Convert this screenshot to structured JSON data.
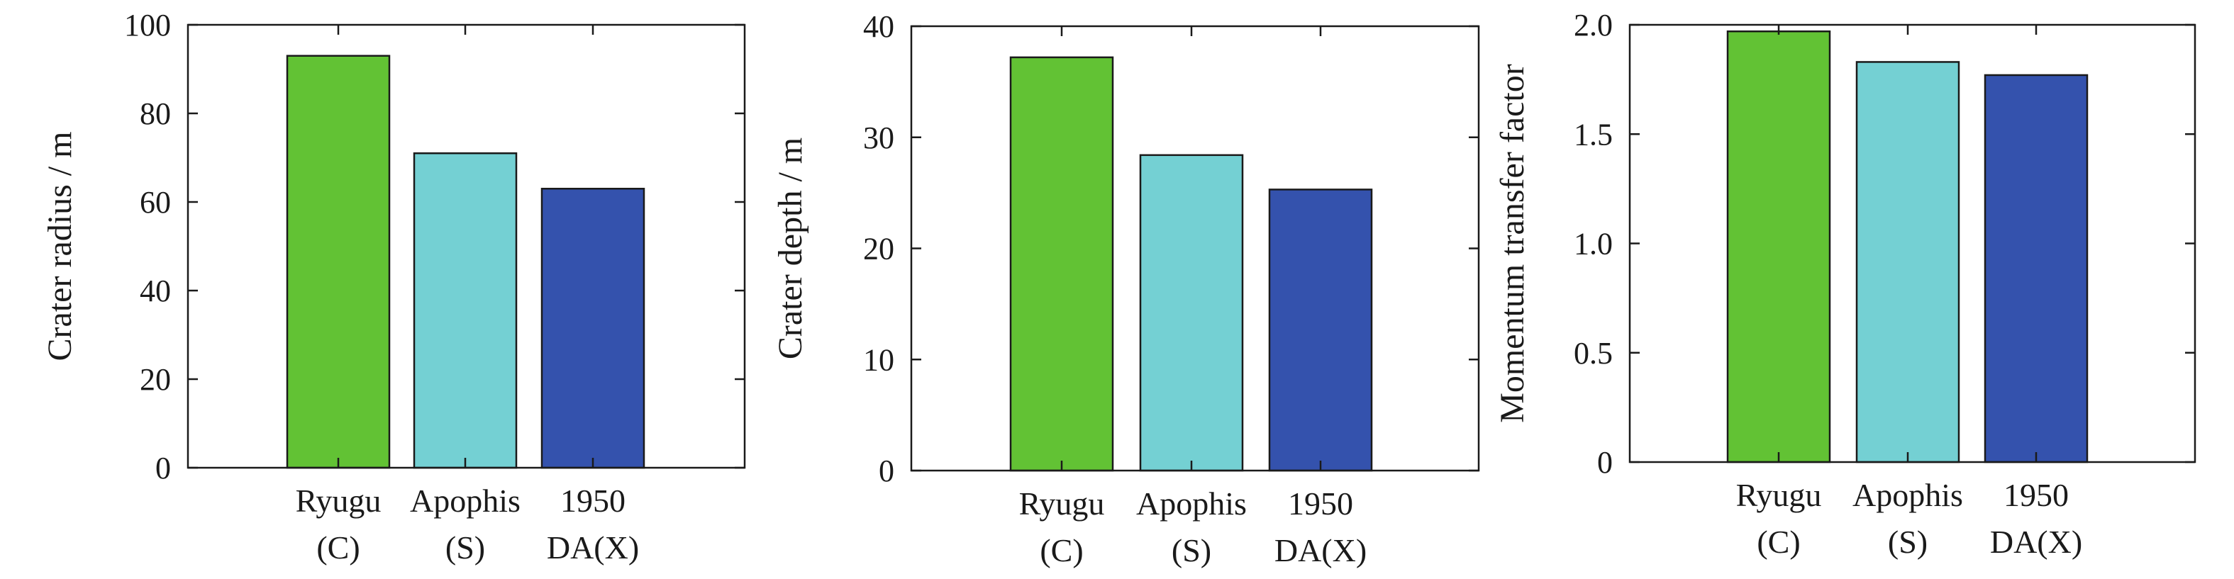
{
  "chart_data": [
    {
      "type": "bar",
      "ylabel": "Crater radius / m",
      "ylim": [
        0,
        100
      ],
      "yticks": [
        "0",
        "20",
        "40",
        "60",
        "80",
        "100"
      ],
      "categories": [
        {
          "line1": "Ryugu",
          "line2": "(C)"
        },
        {
          "line1": "Apophis",
          "line2": "(S)"
        },
        {
          "line1": "1950",
          "line2": "DA(X)"
        }
      ],
      "values": [
        93,
        71,
        63
      ],
      "colors": [
        "#62c234",
        "#74d0d3",
        "#3452ad"
      ],
      "grid": false
    },
    {
      "type": "bar",
      "ylabel": "Crater depth / m",
      "ylim": [
        0,
        40
      ],
      "yticks": [
        "0",
        "10",
        "20",
        "30",
        "40"
      ],
      "categories": [
        {
          "line1": "Ryugu",
          "line2": "(C)"
        },
        {
          "line1": "Apophis",
          "line2": "(S)"
        },
        {
          "line1": "1950",
          "line2": "DA(X)"
        }
      ],
      "values": [
        37.2,
        28.4,
        25.3
      ],
      "colors": [
        "#62c234",
        "#74d0d3",
        "#3452ad"
      ],
      "grid": false
    },
    {
      "type": "bar",
      "ylabel": "Momentum transfer factor",
      "ylim": [
        0,
        2.0
      ],
      "yticks": [
        "0",
        "0.5",
        "1.0",
        "1.5",
        "2.0"
      ],
      "categories": [
        {
          "line1": "Ryugu",
          "line2": "(C)"
        },
        {
          "line1": "Apophis",
          "line2": "(S)"
        },
        {
          "line1": "1950",
          "line2": "DA(X)"
        }
      ],
      "values": [
        1.97,
        1.83,
        1.77
      ],
      "colors": [
        "#62c234",
        "#74d0d3",
        "#3452ad"
      ],
      "grid": false
    }
  ]
}
